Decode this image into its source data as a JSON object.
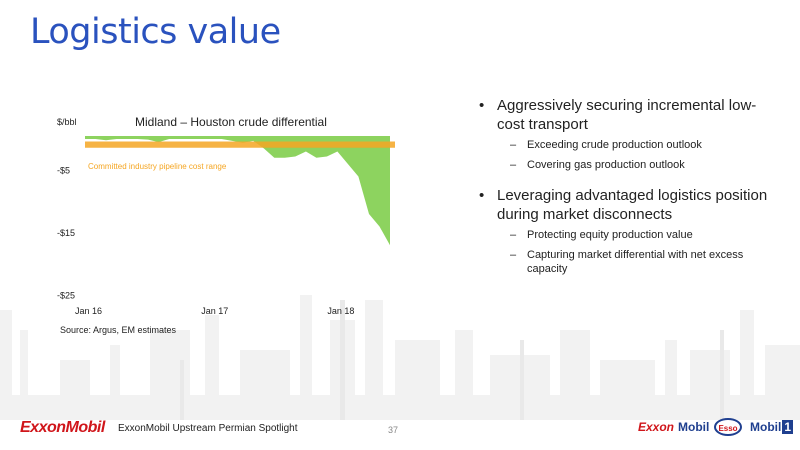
{
  "slide": {
    "title": "Logistics value",
    "source": "Source: Argus, EM estimates"
  },
  "chart_data": {
    "type": "area",
    "title": "Midland – Houston crude differential",
    "ylabel": "$/bbl",
    "ytick_labels": [
      "-$5",
      "-$15",
      "-$25"
    ],
    "xtick_labels": [
      "Jan 16",
      "Jan 17",
      "Jan 18"
    ],
    "ylim": [
      -25,
      2
    ],
    "x": [
      "Jan 16",
      "Feb 16",
      "Mar 16",
      "Apr 16",
      "May 16",
      "Jun 16",
      "Jul 16",
      "Aug 16",
      "Sep 16",
      "Oct 16",
      "Nov 16",
      "Dec 16",
      "Jan 17",
      "Feb 17",
      "Mar 17",
      "Apr 17",
      "May 17",
      "Jun 17",
      "Jul 17",
      "Aug 17",
      "Sep 17",
      "Oct 17",
      "Nov 17",
      "Dec 17",
      "Jan 18",
      "Feb 18",
      "Mar 18",
      "Apr 18",
      "May 18",
      "Jun 18"
    ],
    "values": [
      0.2,
      0.4,
      -0.2,
      0.1,
      0.5,
      0.2,
      -0.1,
      -0.5,
      0.1,
      0.3,
      0.0,
      0.2,
      0.6,
      0.2,
      -0.3,
      -0.6,
      -0.3,
      -1.5,
      -3.0,
      -3.0,
      -2.8,
      -2.0,
      -3.0,
      -2.8,
      -2.0,
      -4.0,
      -6.0,
      -12.0,
      -14.0,
      -17.0
    ],
    "series": [
      {
        "name": "Midland – Houston crude differential",
        "color": "#8dd35f"
      }
    ],
    "band": {
      "label": "Committed industry pipeline cost range",
      "range": [
        -1.4,
        -0.4
      ],
      "color": "#f5a623"
    },
    "grid": false,
    "legend": "none"
  },
  "bullets": [
    {
      "text": "Aggressively securing incremental low-cost transport",
      "subs": [
        "Exceeding crude production outlook",
        "Covering gas production outlook"
      ]
    },
    {
      "text": "Leveraging advantaged logistics position during market disconnects",
      "subs": [
        "Protecting equity production value",
        "Capturing market differential with net excess capacity"
      ]
    }
  ],
  "footer": {
    "company_logo": "ExxonMobil",
    "text": "ExxonMobil Upstream Permian Spotlight",
    "page": "37",
    "brands": [
      "Exxon",
      "Mobil",
      "Esso",
      "Mobil",
      "1"
    ]
  },
  "icons": [
    "refinery-skyline-graphic"
  ]
}
